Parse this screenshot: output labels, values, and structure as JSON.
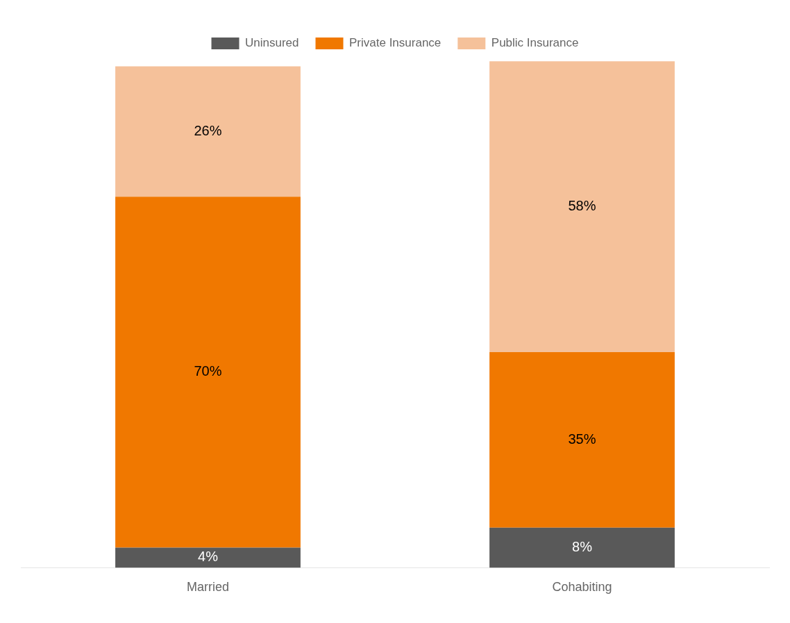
{
  "chart_data": {
    "type": "bar",
    "stacked": true,
    "categories": [
      "Married",
      "Cohabiting"
    ],
    "series": [
      {
        "name": "Uninsured",
        "color": "#595959",
        "values": [
          4,
          8
        ],
        "value_labels": [
          "4%",
          "8%"
        ]
      },
      {
        "name": "Private Insurance",
        "color": "#F07800",
        "values": [
          70,
          35
        ],
        "value_labels": [
          "70%",
          "35%"
        ]
      },
      {
        "name": "Public Insurance",
        "color": "#F5C19A",
        "values": [
          26,
          58
        ],
        "value_labels": [
          "26%",
          "58%"
        ]
      }
    ],
    "ylim": [
      0,
      102
    ],
    "grid": false,
    "legend": "top",
    "data_labels": true,
    "tick_labels": "x"
  }
}
